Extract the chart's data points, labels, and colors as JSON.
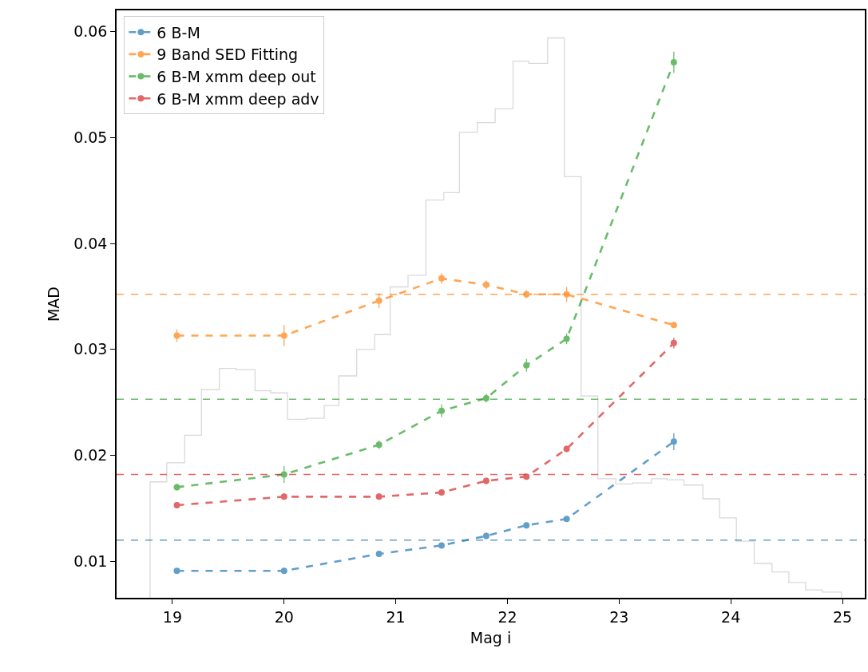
{
  "chart_data": {
    "type": "line",
    "xlabel": "Mag i",
    "ylabel": "MAD",
    "xlim": [
      18.5,
      25.2
    ],
    "xticks": [
      19,
      20,
      21,
      22,
      23,
      24,
      25
    ],
    "ylim": [
      0.00656,
      0.062
    ],
    "yticks": [
      0.01,
      0.02,
      0.03,
      0.04,
      0.05,
      0.06
    ],
    "legend": "top left",
    "marker": "circle",
    "line_style": "dashed",
    "x": [
      19.04,
      20.0,
      20.85,
      21.41,
      21.81,
      22.17,
      22.53,
      23.49
    ],
    "series": [
      {
        "type": "histogram",
        "color": "#d9d9d9",
        "bins": [
          18.8,
          18.95,
          19.11,
          19.26,
          19.42,
          19.57,
          19.74,
          19.88,
          20.03,
          20.2,
          20.36,
          20.49,
          20.65,
          20.81,
          20.95,
          21.11,
          21.27,
          21.43,
          21.57,
          21.73,
          21.89,
          22.05,
          22.19,
          22.36,
          22.51,
          22.66,
          22.81,
          22.97,
          23.12,
          23.29,
          23.43,
          23.58,
          23.75,
          23.9,
          24.05,
          24.21,
          24.37,
          24.52,
          24.67,
          24.82,
          24.99
        ],
        "values": [
          0.0175,
          0.0193,
          0.0219,
          0.0262,
          0.0282,
          0.0281,
          0.0261,
          0.0259,
          0.0234,
          0.0235,
          0.0247,
          0.0275,
          0.03,
          0.0314,
          0.0359,
          0.037,
          0.0441,
          0.0448,
          0.0505,
          0.0514,
          0.0527,
          0.0572,
          0.057,
          0.0594,
          0.0463,
          0.0256,
          0.0178,
          0.0173,
          0.0174,
          0.0178,
          0.0177,
          0.0172,
          0.0159,
          0.0141,
          0.0119,
          0.0098,
          0.009,
          0.008,
          0.0073,
          0.0071
        ]
      },
      {
        "name": "6 B-M",
        "color": "#1f77b4",
        "values": [
          0.0091,
          0.0091,
          0.0107,
          0.0115,
          0.0124,
          0.0134,
          0.014,
          0.0213
        ],
        "errors": [
          0.0002,
          0.0002,
          0.0003,
          0.0002,
          0.0003,
          0.0003,
          0.0002,
          0.0008
        ]
      },
      {
        "name": "9 Band SED Fitting",
        "color": "#ff7f0e",
        "values": [
          0.0313,
          0.0313,
          0.0346,
          0.0367,
          0.0361,
          0.0352,
          0.0352,
          0.0323
        ],
        "errors": [
          0.0006,
          0.001,
          0.0007,
          0.0005,
          0.0004,
          0.0004,
          0.0007,
          0.0002
        ]
      },
      {
        "name": "6 B-M xmm deep out",
        "color": "#2ca02c",
        "values": [
          0.017,
          0.0182,
          0.021,
          0.0242,
          0.0254,
          0.0285,
          0.031,
          0.0571
        ],
        "errors": [
          0.0003,
          0.0008,
          0.0004,
          0.0006,
          0.0004,
          0.0006,
          0.0005,
          0.001
        ]
      },
      {
        "name": "6 B-M xmm deep adv",
        "color": "#d62728",
        "values": [
          0.0153,
          0.0161,
          0.0161,
          0.0165,
          0.0176,
          0.018,
          0.0206,
          0.0306
        ],
        "errors": [
          0.0003,
          0.0003,
          0.0003,
          0.0003,
          0.0003,
          0.0002,
          0.0003,
          0.0005
        ]
      }
    ],
    "ref_lines": [
      {
        "axis": "y",
        "value": 0.012,
        "color": "#1f77b4",
        "line_style": "dashed"
      },
      {
        "axis": "y",
        "value": 0.0352,
        "color": "#ff7f0e",
        "line_style": "dashed"
      },
      {
        "axis": "y",
        "value": 0.0253,
        "color": "#2ca02c",
        "line_style": "dashed"
      },
      {
        "axis": "y",
        "value": 0.0182,
        "color": "#d62728",
        "line_style": "dashed"
      }
    ]
  }
}
